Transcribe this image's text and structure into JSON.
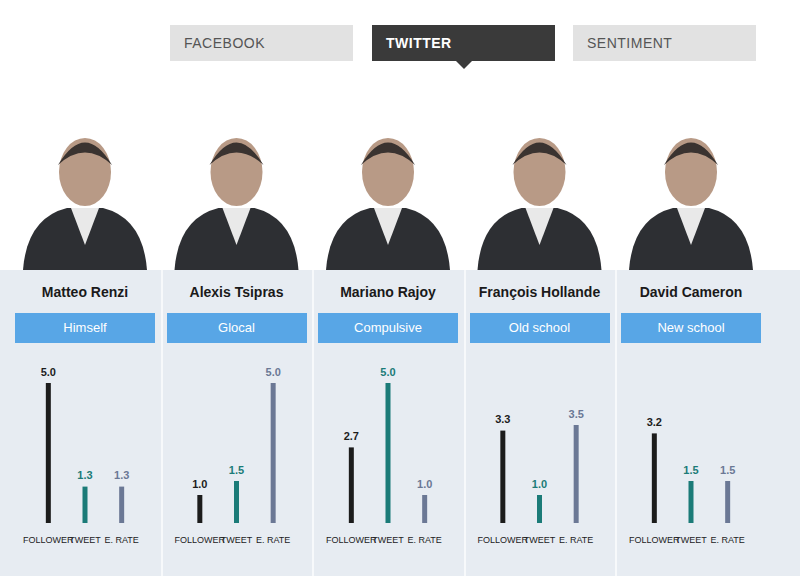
{
  "tabs": [
    {
      "label": "FACEBOOK",
      "active": false
    },
    {
      "label": "TWITTER",
      "active": true
    },
    {
      "label": "SENTIMENT",
      "active": false
    }
  ],
  "chart_data": [
    {
      "type": "bar",
      "title": "Matteo Renzi",
      "subtitle": "Himself",
      "categories": [
        "FOLLOWER",
        "TWEET",
        "E. RATE"
      ],
      "values": [
        5.0,
        1.3,
        1.3
      ],
      "value_labels": [
        "5.0",
        "1.3",
        "1.3"
      ],
      "colors": [
        "#1c1c1c",
        "#1b7b78",
        "#6b7895"
      ],
      "ylim": [
        0,
        5
      ],
      "grid": false,
      "data_labels": true,
      "tick_labels": "x"
    },
    {
      "type": "bar",
      "title": "Alexis Tsipras",
      "subtitle": "Glocal",
      "categories": [
        "FOLLOWER",
        "TWEET",
        "E. RATE"
      ],
      "values": [
        1.0,
        1.5,
        5.0
      ],
      "value_labels": [
        "1.0",
        "1.5",
        "5.0"
      ],
      "colors": [
        "#1c1c1c",
        "#1b7b78",
        "#6b7895"
      ],
      "ylim": [
        0,
        5
      ],
      "grid": false,
      "data_labels": true,
      "tick_labels": "x"
    },
    {
      "type": "bar",
      "title": "Mariano Rajoy",
      "subtitle": "Compulsive",
      "categories": [
        "FOLLOWER",
        "TWEET",
        "E. RATE"
      ],
      "values": [
        2.7,
        5.0,
        1.0
      ],
      "value_labels": [
        "2.7",
        "5.0",
        "1.0"
      ],
      "colors": [
        "#1c1c1c",
        "#1b7b78",
        "#6b7895"
      ],
      "ylim": [
        0,
        5
      ],
      "grid": false,
      "data_labels": true,
      "tick_labels": "x"
    },
    {
      "type": "bar",
      "title": "François Hollande",
      "subtitle": "Old school",
      "categories": [
        "FOLLOWER",
        "TWEET",
        "E. RATE"
      ],
      "values": [
        3.3,
        1.0,
        3.5
      ],
      "value_labels": [
        "3.3",
        "1.0",
        "3.5"
      ],
      "colors": [
        "#1c1c1c",
        "#1b7b78",
        "#6b7895"
      ],
      "ylim": [
        0,
        5
      ],
      "grid": false,
      "data_labels": true,
      "tick_labels": "x"
    },
    {
      "type": "bar",
      "title": "David Cameron",
      "subtitle": "New school",
      "categories": [
        "FOLLOWER",
        "TWEET",
        "E. RATE"
      ],
      "values": [
        3.2,
        1.5,
        1.5
      ],
      "value_labels": [
        "3.2",
        "1.5",
        "1.5"
      ],
      "colors": [
        "#1c1c1c",
        "#1b7b78",
        "#6b7895"
      ],
      "ylim": [
        0,
        5
      ],
      "grid": false,
      "data_labels": true,
      "tick_labels": "x"
    }
  ]
}
